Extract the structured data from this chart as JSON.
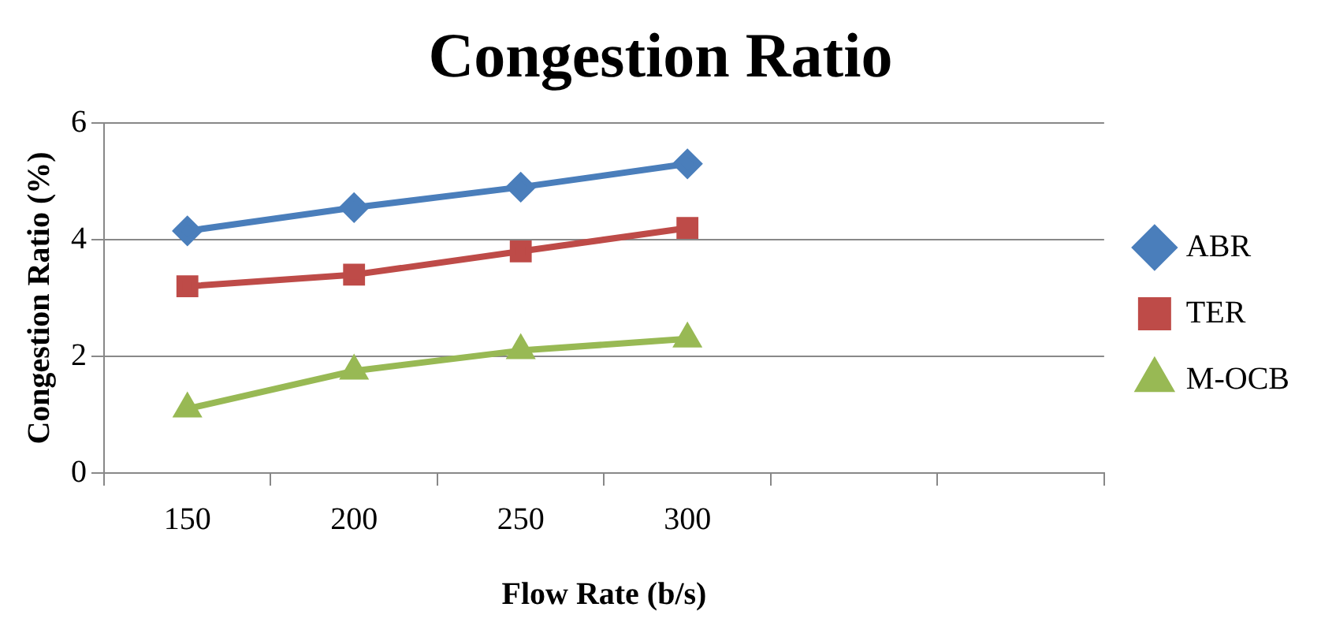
{
  "chart_data": {
    "type": "line",
    "title": "Congestion Ratio",
    "xlabel": "Flow Rate (b/s)",
    "ylabel": "Congestion Ratio (%)",
    "categories": [
      "150",
      "200",
      "250",
      "300",
      null,
      null
    ],
    "series": [
      {
        "name": "ABR",
        "color": "#4a7ebb",
        "marker": "diamond",
        "values": [
          4.15,
          4.55,
          4.9,
          5.3,
          null,
          null
        ]
      },
      {
        "name": "TER",
        "color": "#be4b48",
        "marker": "square",
        "values": [
          3.2,
          3.4,
          3.8,
          4.2,
          null,
          null
        ]
      },
      {
        "name": "M-OCB",
        "color": "#98b954",
        "marker": "triangle",
        "values": [
          1.1,
          1.75,
          2.1,
          2.3,
          null,
          null
        ]
      }
    ],
    "ylim": [
      0,
      6
    ],
    "yticks": [
      0,
      2,
      4,
      6
    ],
    "grid": "y",
    "legend": "right",
    "line_style": "solid"
  }
}
